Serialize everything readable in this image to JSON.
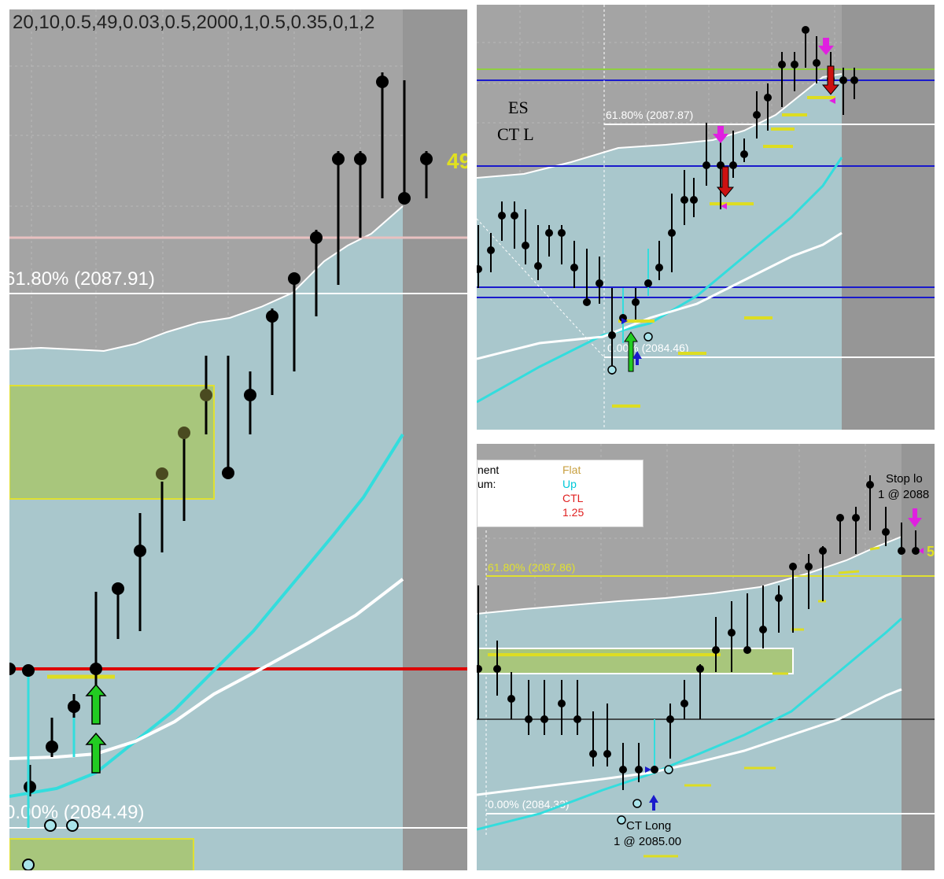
{
  "panels": {
    "left": {
      "header_text": "20,10,0.5,49,0.03,0.5,2000,1,0.5,0.35,0,1,2",
      "fib_top_label": "61.80% (2087.91)",
      "fib_bottom_label": "0.00% (2084.49)",
      "right_value_label": "49"
    },
    "top_right": {
      "symbol": "ES",
      "signal": "CT L",
      "fib_top_label": "61.80% (2087.87)",
      "fib_bottom_label": "0.00% (2084.46)"
    },
    "bottom_right": {
      "legend": {
        "rows": [
          {
            "label": "nent",
            "value": "Flat",
            "color": "#c8a040"
          },
          {
            "label": "um:",
            "value": "Up",
            "color": "#00c8d8"
          },
          {
            "label": "",
            "value": "CTL",
            "color": "#e02020"
          },
          {
            "label": "",
            "value": "1.25",
            "color": "#e02020"
          }
        ]
      },
      "fib_top_label": "61.80% (2087.86)",
      "fib_bottom_label": "0.00% (2084.33)",
      "entry_label": "CT Long",
      "entry_price": "1 @ 2085.00",
      "stop_label": "Stop lo",
      "stop_price": "1 @ 2088",
      "right_value_label": "5"
    }
  },
  "colors": {
    "background": "#a4a4a4",
    "band_fill": "#a9c7cc",
    "midline": "#33dddd",
    "lower_band": "#ffffff",
    "fib_line": "#ffffff",
    "box_fill": "#a8c67c",
    "box_border": "#e0e030",
    "signal_up": "#22cc22",
    "signal_down": "#cc1111",
    "marker_magenta": "#e020e0",
    "blue_line": "#1a1acc",
    "red_line": "#dd0000",
    "yellow_dash": "#dddd22"
  }
}
